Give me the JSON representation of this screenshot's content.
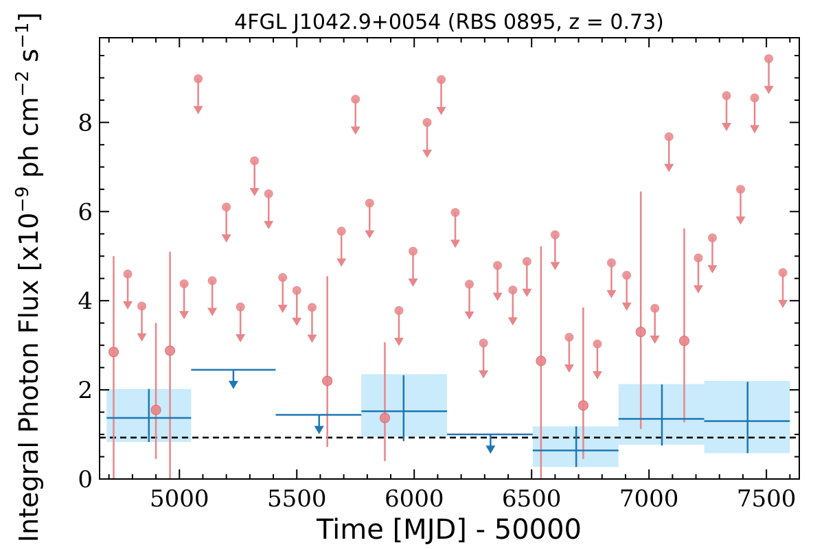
{
  "chart_data": {
    "type": "scatter",
    "title": "4FGL J1042.9+0054 (RBS 0895, z = 0.73)",
    "xlabel": "Time [MJD] - 50000",
    "ylabel": "Integral Photon Flux [x10^-9 ph cm^-2 s^-1]",
    "ylabel_parts": {
      "prefix": "Integral Photon Flux [x10",
      "exp1": "−9",
      "mid": " ph cm",
      "exp2": "−2",
      "mid2": " s",
      "exp3": "−1",
      "suffix": "]"
    },
    "xlim": [
      4660,
      7640
    ],
    "ylim": [
      0,
      9.9
    ],
    "xticks": [
      5000,
      5500,
      6000,
      6500,
      7000,
      7500
    ],
    "yticks": [
      0,
      2,
      4,
      6,
      8
    ],
    "x_minor_step": 100,
    "y_minor_step": 0.5,
    "reference_level": 0.93,
    "short_bin_color": "#e8868a",
    "long_bin_color": "#1f77b4",
    "band_color": "#c9ebfb",
    "short_detections": [
      {
        "x": 4720,
        "y": 2.85,
        "ylo": 0.0,
        "yhi": 5.0
      },
      {
        "x": 4900,
        "y": 1.55,
        "ylo": 0.45,
        "yhi": 3.5
      },
      {
        "x": 4960,
        "y": 2.88,
        "ylo": 0.0,
        "yhi": 5.1
      },
      {
        "x": 5630,
        "y": 2.2,
        "ylo": 0.72,
        "yhi": 4.55
      },
      {
        "x": 5875,
        "y": 1.37,
        "ylo": 0.4,
        "yhi": 3.07
      },
      {
        "x": 6540,
        "y": 2.65,
        "ylo": 0.0,
        "yhi": 5.22
      },
      {
        "x": 6720,
        "y": 1.65,
        "ylo": 0.45,
        "yhi": 3.85
      },
      {
        "x": 6965,
        "y": 3.3,
        "ylo": 1.12,
        "yhi": 6.45
      },
      {
        "x": 7150,
        "y": 3.1,
        "ylo": 1.27,
        "yhi": 5.62
      }
    ],
    "short_upper_limits": [
      {
        "x": 4780,
        "y": 4.6
      },
      {
        "x": 4840,
        "y": 3.88
      },
      {
        "x": 5020,
        "y": 4.38
      },
      {
        "x": 5080,
        "y": 8.98
      },
      {
        "x": 5140,
        "y": 4.45
      },
      {
        "x": 5200,
        "y": 6.1
      },
      {
        "x": 5260,
        "y": 3.86
      },
      {
        "x": 5320,
        "y": 7.14
      },
      {
        "x": 5380,
        "y": 6.4
      },
      {
        "x": 5440,
        "y": 4.52
      },
      {
        "x": 5500,
        "y": 4.23
      },
      {
        "x": 5565,
        "y": 3.85
      },
      {
        "x": 5690,
        "y": 5.56
      },
      {
        "x": 5750,
        "y": 8.52
      },
      {
        "x": 5810,
        "y": 6.19
      },
      {
        "x": 5935,
        "y": 3.78
      },
      {
        "x": 5995,
        "y": 5.11
      },
      {
        "x": 6055,
        "y": 8.0
      },
      {
        "x": 6115,
        "y": 8.96
      },
      {
        "x": 6175,
        "y": 5.98
      },
      {
        "x": 6235,
        "y": 4.37
      },
      {
        "x": 6295,
        "y": 3.05
      },
      {
        "x": 6355,
        "y": 4.79
      },
      {
        "x": 6420,
        "y": 4.24
      },
      {
        "x": 6480,
        "y": 4.88
      },
      {
        "x": 6600,
        "y": 5.48
      },
      {
        "x": 6660,
        "y": 3.18
      },
      {
        "x": 6780,
        "y": 3.03
      },
      {
        "x": 6840,
        "y": 4.85
      },
      {
        "x": 6905,
        "y": 4.57
      },
      {
        "x": 7025,
        "y": 3.83
      },
      {
        "x": 7085,
        "y": 7.68
      },
      {
        "x": 7210,
        "y": 4.96
      },
      {
        "x": 7270,
        "y": 5.41
      },
      {
        "x": 7330,
        "y": 8.6
      },
      {
        "x": 7390,
        "y": 6.5
      },
      {
        "x": 7450,
        "y": 8.55
      },
      {
        "x": 7510,
        "y": 9.43
      },
      {
        "x": 7570,
        "y": 4.63
      }
    ],
    "long_detections": [
      {
        "x0": 4690,
        "x1": 5050,
        "xc": 4870,
        "y": 1.37,
        "ylo": 0.83,
        "yhi": 2.02,
        "band_lo": 0.83,
        "band_hi": 2.02
      },
      {
        "x0": 5775,
        "x1": 6140,
        "xc": 5955,
        "y": 1.52,
        "ylo": 0.85,
        "yhi": 2.33,
        "band_lo": 0.95,
        "band_hi": 2.35
      },
      {
        "x0": 6505,
        "x1": 6870,
        "xc": 6690,
        "y": 0.64,
        "ylo": 0.27,
        "yhi": 1.18,
        "band_lo": 0.27,
        "band_hi": 1.18
      },
      {
        "x0": 6870,
        "x1": 7235,
        "xc": 7055,
        "y": 1.35,
        "ylo": 0.75,
        "yhi": 2.12,
        "band_lo": 0.77,
        "band_hi": 2.13
      },
      {
        "x0": 7235,
        "x1": 7600,
        "xc": 7420,
        "y": 1.3,
        "ylo": 0.58,
        "yhi": 2.18,
        "band_lo": 0.58,
        "band_hi": 2.2
      }
    ],
    "long_upper_limits": [
      {
        "x0": 5050,
        "x1": 5410,
        "xc": 5230,
        "y": 2.45
      },
      {
        "x0": 5410,
        "x1": 5775,
        "xc": 5595,
        "y": 1.44
      },
      {
        "x0": 6140,
        "x1": 6505,
        "xc": 6325,
        "y": 1.0
      }
    ]
  }
}
